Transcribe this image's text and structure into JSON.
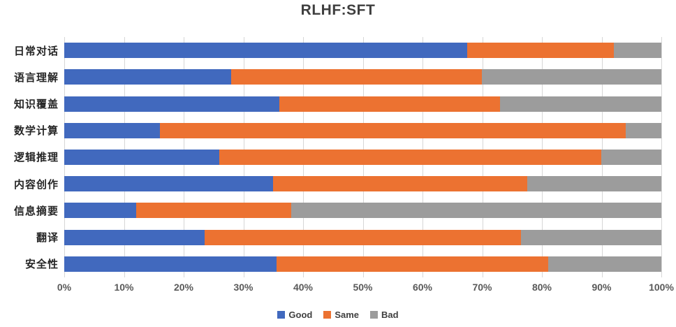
{
  "title": "RLHF:SFT",
  "chart_data": {
    "type": "bar",
    "orientation": "horizontal",
    "stacked": true,
    "title": "RLHF:SFT",
    "categories": [
      "日常对话",
      "语言理解",
      "知识覆盖",
      "数学计算",
      "逻辑推理",
      "内容创作",
      "信息摘要",
      "翻译",
      "安全性"
    ],
    "series": [
      {
        "name": "Good",
        "color": "#4169be",
        "values": [
          67.5,
          28,
          36,
          16,
          26,
          35,
          12,
          23.5,
          35.5
        ]
      },
      {
        "name": "Same",
        "color": "#ec7231",
        "values": [
          24.5,
          42,
          37,
          78,
          64,
          42.5,
          26,
          53,
          45.5
        ]
      },
      {
        "name": "Bad",
        "color": "#9c9c9c",
        "values": [
          8,
          30,
          27,
          6,
          10,
          22.5,
          62,
          23.5,
          19
        ]
      }
    ],
    "xlim": [
      0,
      100
    ],
    "x_ticks": [
      "0%",
      "10%",
      "20%",
      "30%",
      "40%",
      "50%",
      "60%",
      "70%",
      "80%",
      "90%",
      "100%"
    ],
    "grid": "vertical",
    "legend_position": "bottom",
    "legend": [
      "Good",
      "Same",
      "Bad"
    ]
  },
  "colors": {
    "gridline": "#d6d6d6",
    "title_text": "#3f3f3f",
    "axis_text": "#595959",
    "category_text": "#262626",
    "background": "#ffffff"
  }
}
